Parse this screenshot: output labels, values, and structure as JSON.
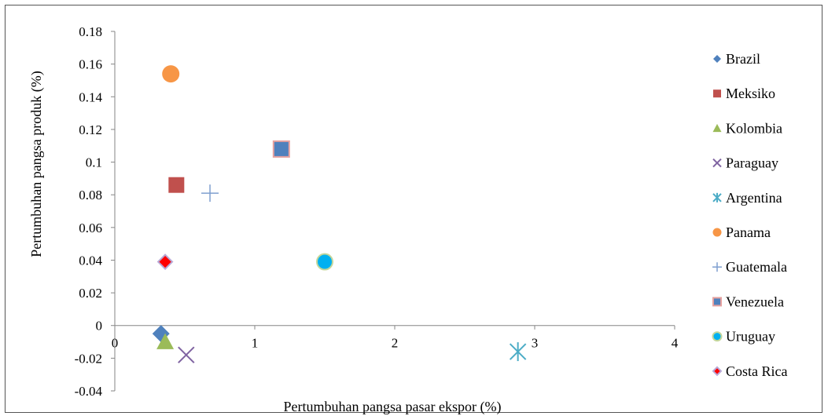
{
  "chart_data": {
    "type": "scatter",
    "xlabel": "Pertumbuhan pangsa pasar ekspor (%)",
    "ylabel": "Pertumbuhan pangsa produk (%)",
    "xlim": [
      0,
      4
    ],
    "ylim": [
      -0.04,
      0.18
    ],
    "x_ticks": [
      "0",
      "1",
      "2",
      "3",
      "4"
    ],
    "y_ticks": [
      "0.18",
      "0.16",
      "0.14",
      "0.12",
      "0.1",
      "0.08",
      "0.06",
      "0.04",
      "0.02",
      "0",
      "-0.02",
      "-0.04"
    ],
    "grid": false,
    "legend_position": "right",
    "series": [
      {
        "name": "Brazil",
        "marker": "diamond",
        "color": "#4f81bd",
        "x": 0.33,
        "y": -0.005
      },
      {
        "name": "Meksiko",
        "marker": "square",
        "color": "#c0504d",
        "x": 0.44,
        "y": 0.086
      },
      {
        "name": "Kolombia",
        "marker": "triangle",
        "color": "#9bbb59",
        "x": 0.36,
        "y": -0.01
      },
      {
        "name": "Paraguay",
        "marker": "x",
        "color": "#8064a2",
        "x": 0.51,
        "y": -0.018
      },
      {
        "name": "Argentina",
        "marker": "asterisk",
        "color": "#4bacc6",
        "x": 2.88,
        "y": -0.016
      },
      {
        "name": "Panama",
        "marker": "circle",
        "color": "#f79646",
        "x": 0.4,
        "y": 0.154
      },
      {
        "name": "Guatemala",
        "marker": "plus",
        "color": "#7f9fcf",
        "x": 0.68,
        "y": 0.081
      },
      {
        "name": "Venezuela",
        "marker": "square-outlined",
        "color": "#4f81bd",
        "x": 1.19,
        "y": 0.108
      },
      {
        "name": "Uruguay",
        "marker": "circle-outlined",
        "color": "#00b0f0",
        "x": 1.5,
        "y": 0.039
      },
      {
        "name": "Costa Rica",
        "marker": "diamond-outlined",
        "color": "#ff0000",
        "x": 0.36,
        "y": 0.039
      }
    ]
  }
}
